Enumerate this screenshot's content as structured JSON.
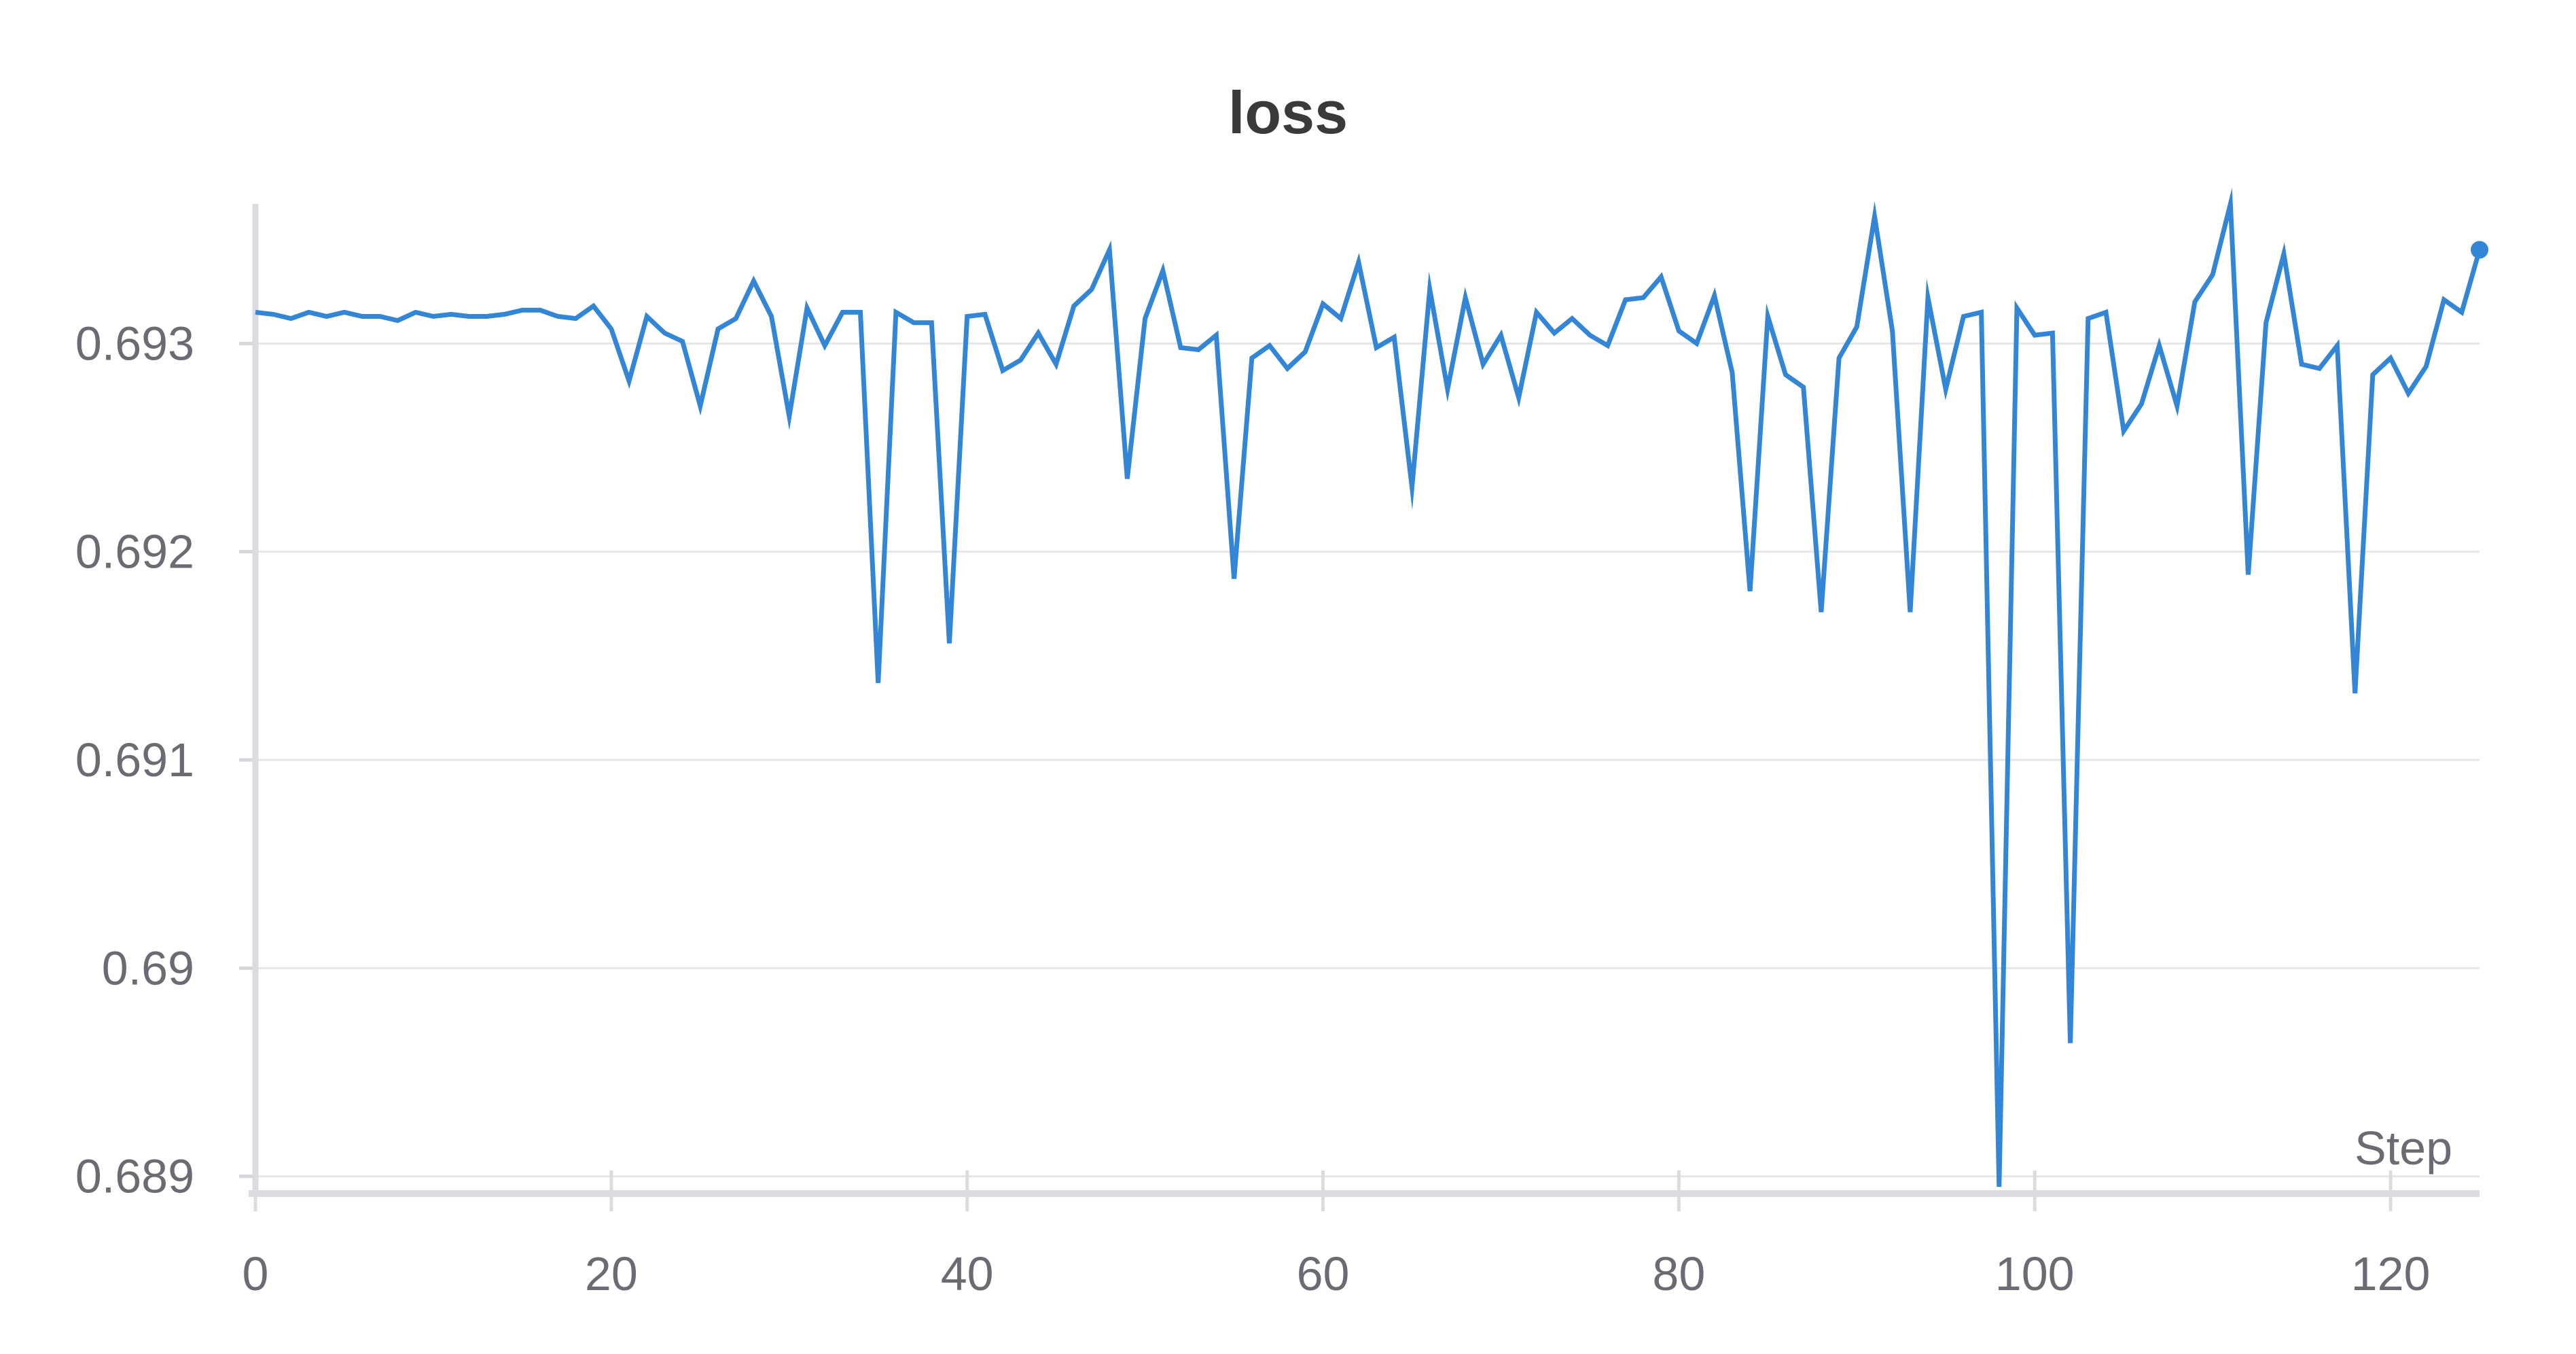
{
  "chart_data": {
    "type": "line",
    "title": "loss",
    "xlabel": "Step",
    "ylabel": "",
    "xlim": [
      0,
      125
    ],
    "ylim": [
      0.68895,
      0.69368
    ],
    "x_ticks": [
      0,
      20,
      40,
      60,
      80,
      100,
      120
    ],
    "x_tick_labels": [
      "0",
      "20",
      "40",
      "60",
      "80",
      "100",
      "120"
    ],
    "y_ticks": [
      0.689,
      0.69,
      0.691,
      0.692,
      0.693
    ],
    "y_tick_labels": [
      "0.689",
      "0.69",
      "0.691",
      "0.692",
      "0.693"
    ],
    "grid": true,
    "legend": "none",
    "series": [
      {
        "color": "#3385d6",
        "x": [
          0,
          1,
          2,
          3,
          4,
          5,
          6,
          7,
          8,
          9,
          10,
          11,
          12,
          13,
          14,
          15,
          16,
          17,
          18,
          19,
          20,
          21,
          22,
          23,
          24,
          25,
          26,
          27,
          28,
          29,
          30,
          31,
          32,
          33,
          34,
          35,
          36,
          37,
          38,
          39,
          40,
          41,
          42,
          43,
          44,
          45,
          46,
          47,
          48,
          49,
          50,
          51,
          52,
          53,
          54,
          55,
          56,
          57,
          58,
          59,
          60,
          61,
          62,
          63,
          64,
          65,
          66,
          67,
          68,
          69,
          70,
          71,
          72,
          73,
          74,
          75,
          76,
          77,
          78,
          79,
          80,
          81,
          82,
          83,
          84,
          85,
          86,
          87,
          88,
          89,
          90,
          91,
          92,
          93,
          94,
          95,
          96,
          97,
          98,
          99,
          100,
          101,
          102,
          103,
          104,
          105,
          106,
          107,
          108,
          109,
          110,
          111,
          112,
          113,
          114,
          115,
          116,
          117,
          118,
          119,
          120,
          121,
          122,
          123,
          124,
          125
        ],
        "y": [
          0.69315,
          0.69314,
          0.69312,
          0.69315,
          0.69313,
          0.69315,
          0.69313,
          0.69313,
          0.69311,
          0.69315,
          0.69313,
          0.69314,
          0.69313,
          0.69313,
          0.69314,
          0.69316,
          0.69316,
          0.69313,
          0.69312,
          0.69318,
          0.69307,
          0.69282,
          0.69313,
          0.69305,
          0.69301,
          0.6927,
          0.69307,
          0.69312,
          0.6933,
          0.69313,
          0.69265,
          0.69317,
          0.69299,
          0.69315,
          0.69315,
          0.69137,
          0.69315,
          0.6931,
          0.6931,
          0.69156,
          0.69313,
          0.69314,
          0.69287,
          0.69292,
          0.69305,
          0.6929,
          0.69318,
          0.69326,
          0.69345,
          0.69235,
          0.69312,
          0.69335,
          0.69298,
          0.69297,
          0.69304,
          0.69187,
          0.69293,
          0.69299,
          0.69288,
          0.69296,
          0.69319,
          0.69312,
          0.69339,
          0.69298,
          0.69303,
          0.69231,
          0.69326,
          0.69278,
          0.69322,
          0.6929,
          0.69304,
          0.69274,
          0.69315,
          0.69305,
          0.69312,
          0.69304,
          0.69299,
          0.69321,
          0.69322,
          0.69332,
          0.69306,
          0.693,
          0.69323,
          0.69286,
          0.69181,
          0.69313,
          0.69285,
          0.69279,
          0.69171,
          0.69293,
          0.69308,
          0.69361,
          0.69306,
          0.69171,
          0.69322,
          0.69278,
          0.69313,
          0.69315,
          0.68895,
          0.69317,
          0.69304,
          0.69305,
          0.68964,
          0.69312,
          0.69315,
          0.69258,
          0.69271,
          0.69299,
          0.6927,
          0.6932,
          0.69333,
          0.69367,
          0.69189,
          0.6931,
          0.69343,
          0.6929,
          0.69288,
          0.69299,
          0.69132,
          0.69285,
          0.69293,
          0.69276,
          0.69289,
          0.69321,
          0.69315,
          0.69345
        ]
      }
    ]
  }
}
